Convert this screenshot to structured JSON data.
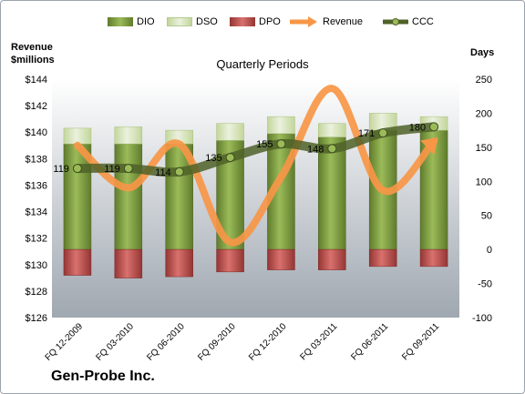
{
  "chart_data": {
    "type": "bar",
    "title": "Quarterly Periods",
    "company": "Gen-Probe Inc.",
    "ylabel_left_line1": "Revenue",
    "ylabel_left_line2": "$millions",
    "ylabel_right": "Days",
    "categories": [
      "FQ 12-2009",
      "FQ 03-2010",
      "FQ 06-2010",
      "FQ 09-2010",
      "FQ 12-2010",
      "FQ 03-2011",
      "FQ 06-2011",
      "FQ 09-2011"
    ],
    "left_axis": {
      "min": 126,
      "max": 144,
      "step": 2,
      "tick_labels": [
        "$126",
        "$128",
        "$130",
        "$132",
        "$134",
        "$136",
        "$138",
        "$140",
        "$142",
        "$144"
      ]
    },
    "right_axis": {
      "min": -100,
      "max": 250,
      "step": 50,
      "tick_labels": [
        "-100",
        "-50",
        "0",
        "50",
        "100",
        "150",
        "200",
        "250"
      ]
    },
    "grid": false,
    "legend_position": "top",
    "series": [
      {
        "name": "DIO",
        "axis": "right",
        "kind": "stacked-bar",
        "color": "#77933c",
        "values": [
          155,
          155,
          155,
          160,
          170,
          165,
          175,
          175
        ]
      },
      {
        "name": "DSO",
        "axis": "right",
        "kind": "stacked-bar",
        "color": "#d7e4bd",
        "values": [
          23,
          25,
          20,
          25,
          25,
          20,
          25,
          20
        ]
      },
      {
        "name": "DPO",
        "axis": "right",
        "kind": "bar-negative",
        "color": "#c0504d",
        "values": [
          -38,
          -42,
          -40,
          -33,
          -30,
          -30,
          -25,
          -25
        ]
      },
      {
        "name": "Revenue",
        "axis": "left",
        "kind": "line",
        "color": "#f79646",
        "values": [
          139.0,
          135.8,
          139.1,
          131.7,
          136.6,
          143.3,
          135.6,
          139.3
        ]
      },
      {
        "name": "CCC",
        "axis": "right",
        "kind": "line",
        "color": "#4f6228",
        "values": [
          119,
          119,
          114,
          135,
          155,
          148,
          171,
          180
        ],
        "data_labels": [
          "119",
          "119",
          "114",
          "135",
          "155",
          "148",
          "171",
          "180"
        ]
      }
    ]
  }
}
